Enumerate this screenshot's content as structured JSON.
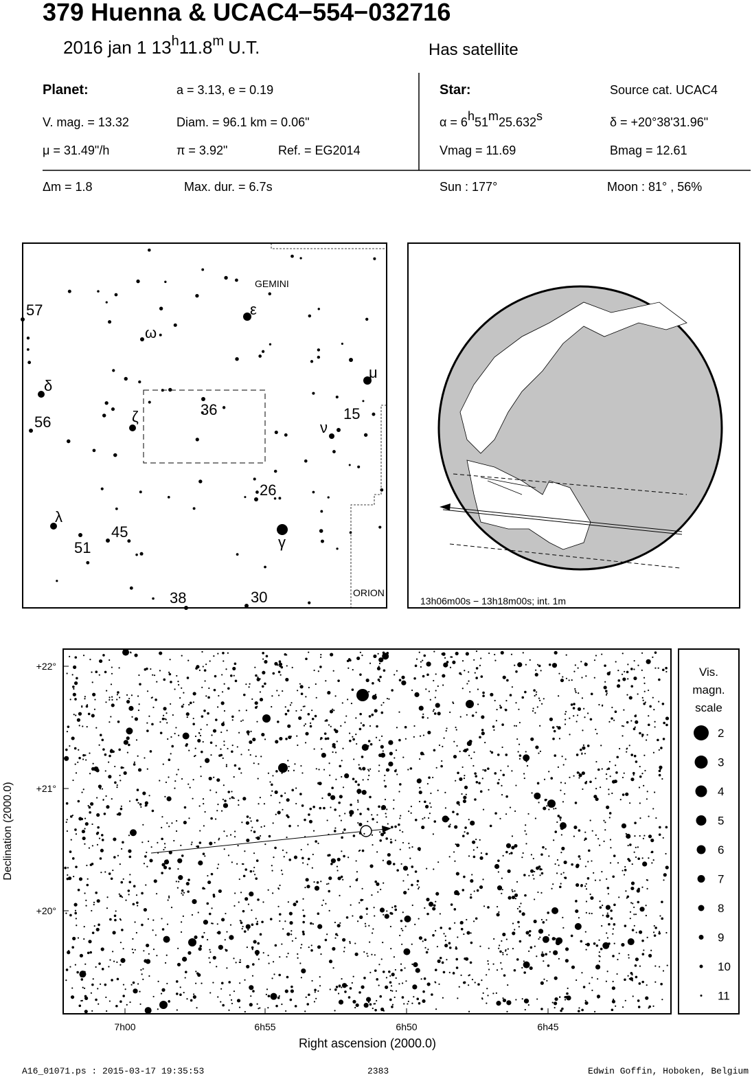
{
  "header": {
    "title": "379 Huenna  &  UCAC4−554−032716",
    "date": {
      "day": "2016 jan  1  13",
      "h": "h",
      "min": "11.8",
      "m": "m",
      "ut": "U.T."
    },
    "note": "Has satellite"
  },
  "planet": {
    "label": "Planet:",
    "orbit": "a = 3.13, e = 0.19",
    "vmag": "V. mag. = 13.32",
    "diam": "Diam. = 96.1 km = 0.06\"",
    "mu": "μ =  31.49\"/h",
    "pi": "π =  3.92\"",
    "ref": "Ref. = EG2014"
  },
  "star": {
    "label": "Star:",
    "source": "Source cat.  UCAC4",
    "alpha": {
      "pre": "α =  6",
      "h": "h",
      "min": "51",
      "m": "m",
      "sec": "25.632",
      "s": "s"
    },
    "delta": "δ = +20°38'31.96\"",
    "vmag": "Vmag = 11.69",
    "bmag": "Bmag = 12.61"
  },
  "event": {
    "dm": "Δm = 1.8",
    "dur": "Max. dur. = 6.7s",
    "sun": "Sun : 177°",
    "moon": "Moon :  81° , 56%"
  },
  "finder": {
    "labels": [
      "GEMINI",
      "57",
      "δ",
      "56",
      "ω",
      "ε",
      "ζ",
      "36",
      "μ",
      "15",
      "ν",
      "26",
      "λ",
      "45",
      "51",
      "γ",
      "ORION",
      "38",
      "30"
    ]
  },
  "globe": {
    "caption": "13h06m00s − 13h18m00s; int.  1m"
  },
  "chart": {
    "yticks": [
      "+22°",
      "+21°",
      "+20°"
    ],
    "xticks": [
      "7h00",
      "6h55",
      "6h50",
      "6h45"
    ],
    "xlabel": "Right ascension (2000.0)",
    "ylabel": "Declination (2000.0)",
    "legend": {
      "title": [
        "Vis.",
        "magn.",
        "scale"
      ],
      "items": [
        "2",
        "3",
        "4",
        "5",
        "6",
        "7",
        "8",
        "9",
        "10",
        "11"
      ]
    }
  },
  "footer": {
    "file": "A16_01071.ps : 2015-03-17 19:35:53",
    "number": "2383",
    "author": "Edwin Goffin, Hoboken, Belgium"
  }
}
